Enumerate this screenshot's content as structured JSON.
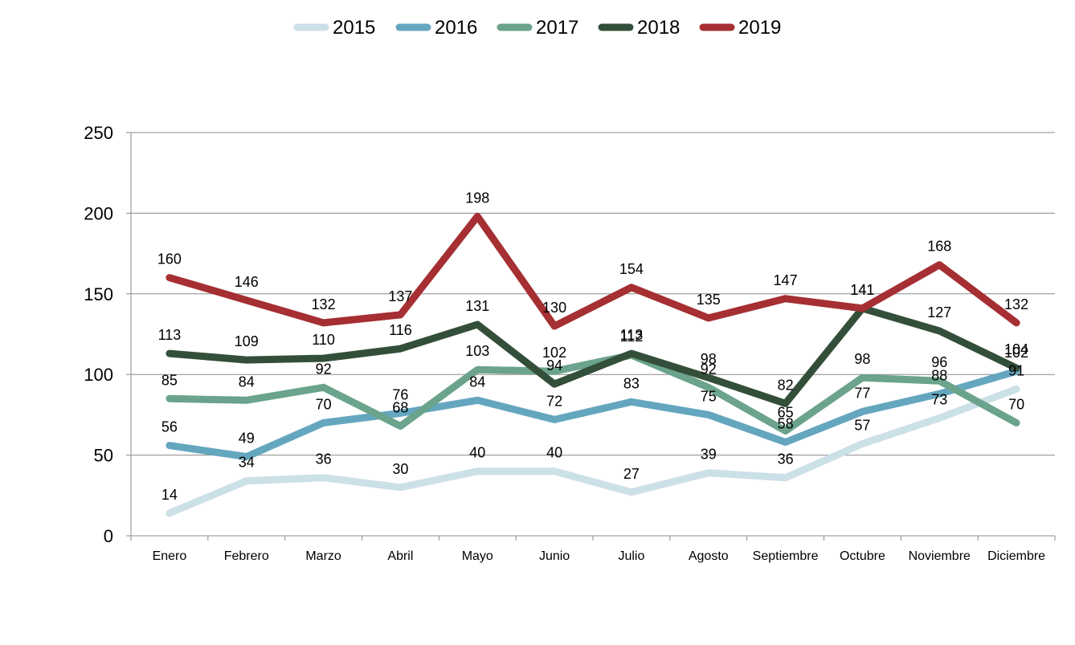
{
  "chart_data": {
    "type": "line",
    "categories": [
      "Enero",
      "Febrero",
      "Marzo",
      "Abril",
      "Mayo",
      "Junio",
      "Julio",
      "Agosto",
      "Septiembre",
      "Octubre",
      "Noviembre",
      "Diciembre"
    ],
    "ylim": [
      0,
      250
    ],
    "yticks": [
      0,
      50,
      100,
      150,
      200,
      250
    ],
    "grid": true,
    "legend_position": "top",
    "series": [
      {
        "name": "2015",
        "color": "#cce0e7",
        "values": [
          14,
          34,
          36,
          30,
          40,
          40,
          27,
          39,
          36,
          57,
          73,
          91
        ]
      },
      {
        "name": "2016",
        "color": "#65a6bf",
        "values": [
          56,
          49,
          70,
          76,
          84,
          72,
          83,
          75,
          58,
          77,
          88,
          102
        ]
      },
      {
        "name": "2017",
        "color": "#6ba38c",
        "values": [
          85,
          84,
          92,
          68,
          103,
          102,
          112,
          92,
          65,
          98,
          96,
          70
        ]
      },
      {
        "name": "2018",
        "color": "#344f39",
        "values": [
          113,
          109,
          110,
          116,
          131,
          94,
          113,
          98,
          82,
          141,
          127,
          104
        ]
      },
      {
        "name": "2019",
        "color": "#a52f32",
        "values": [
          160,
          146,
          132,
          137,
          198,
          130,
          154,
          135,
          147,
          141,
          168,
          132
        ]
      }
    ]
  }
}
